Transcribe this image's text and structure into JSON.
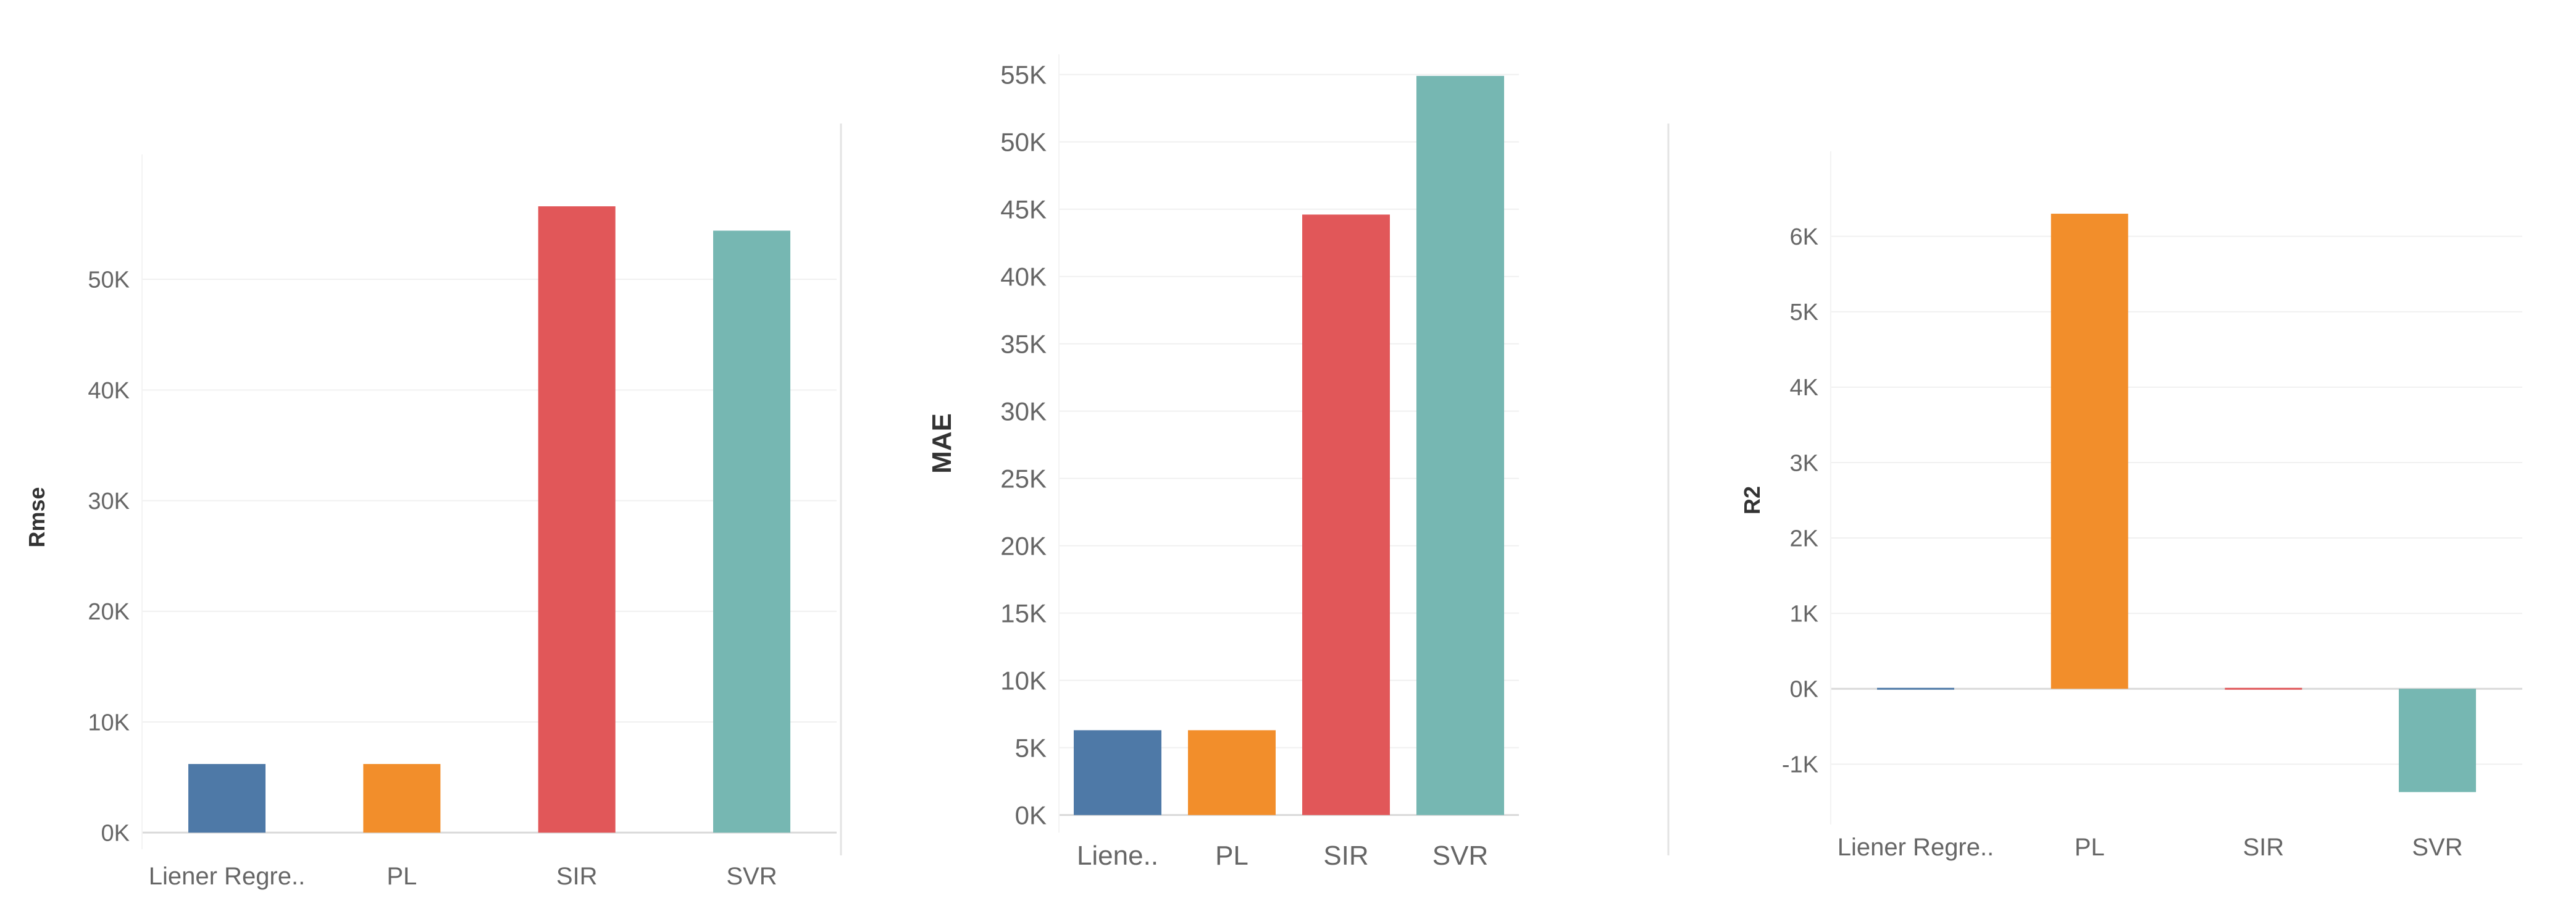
{
  "chart_data": [
    {
      "type": "bar",
      "title": "",
      "xlabel": "",
      "ylabel": "Rmse",
      "categories": [
        "Liener Regre..",
        "PL",
        "SIR",
        "SVR"
      ],
      "values": [
        6200,
        6200,
        56600,
        54400
      ],
      "colors": [
        "#4e79a7",
        "#f28e2b",
        "#e15759",
        "#76b7b2"
      ],
      "ylim": [
        -1500,
        58500
      ],
      "yticks": [
        0,
        10000,
        20000,
        30000,
        40000,
        50000
      ],
      "ytick_labels": [
        "0K",
        "10K",
        "20K",
        "30K",
        "40K",
        "50K"
      ],
      "grid": true
    },
    {
      "type": "bar",
      "title": "",
      "xlabel": "",
      "ylabel": "MAE",
      "categories": [
        "Liene..",
        "PL",
        "SIR",
        "SVR"
      ],
      "values": [
        6300,
        6300,
        44600,
        54900
      ],
      "colors": [
        "#4e79a7",
        "#f28e2b",
        "#e15759",
        "#76b7b2"
      ],
      "ylim": [
        -1300,
        56500
      ],
      "yticks": [
        0,
        5000,
        10000,
        15000,
        20000,
        25000,
        30000,
        35000,
        40000,
        45000,
        50000,
        55000
      ],
      "ytick_labels": [
        "0K",
        "5K",
        "10K",
        "15K",
        "20K",
        "25K",
        "30K",
        "35K",
        "40K",
        "45K",
        "50K",
        "55K"
      ],
      "grid": true
    },
    {
      "type": "bar",
      "title": "",
      "xlabel": "",
      "ylabel": "R2",
      "categories": [
        "Liener Regre..",
        "PL",
        "SIR",
        "SVR"
      ],
      "values": [
        -15,
        6300,
        -10,
        -1370
      ],
      "colors": [
        "#4e79a7",
        "#f28e2b",
        "#e15759",
        "#76b7b2"
      ],
      "ylim": [
        -1800,
        6800
      ],
      "yticks": [
        -1000,
        0,
        1000,
        2000,
        3000,
        4000,
        5000,
        6000
      ],
      "ytick_labels": [
        "-1K",
        "0K",
        "1K",
        "2K",
        "3K",
        "4K",
        "5K",
        "6K"
      ],
      "grid": true
    }
  ]
}
